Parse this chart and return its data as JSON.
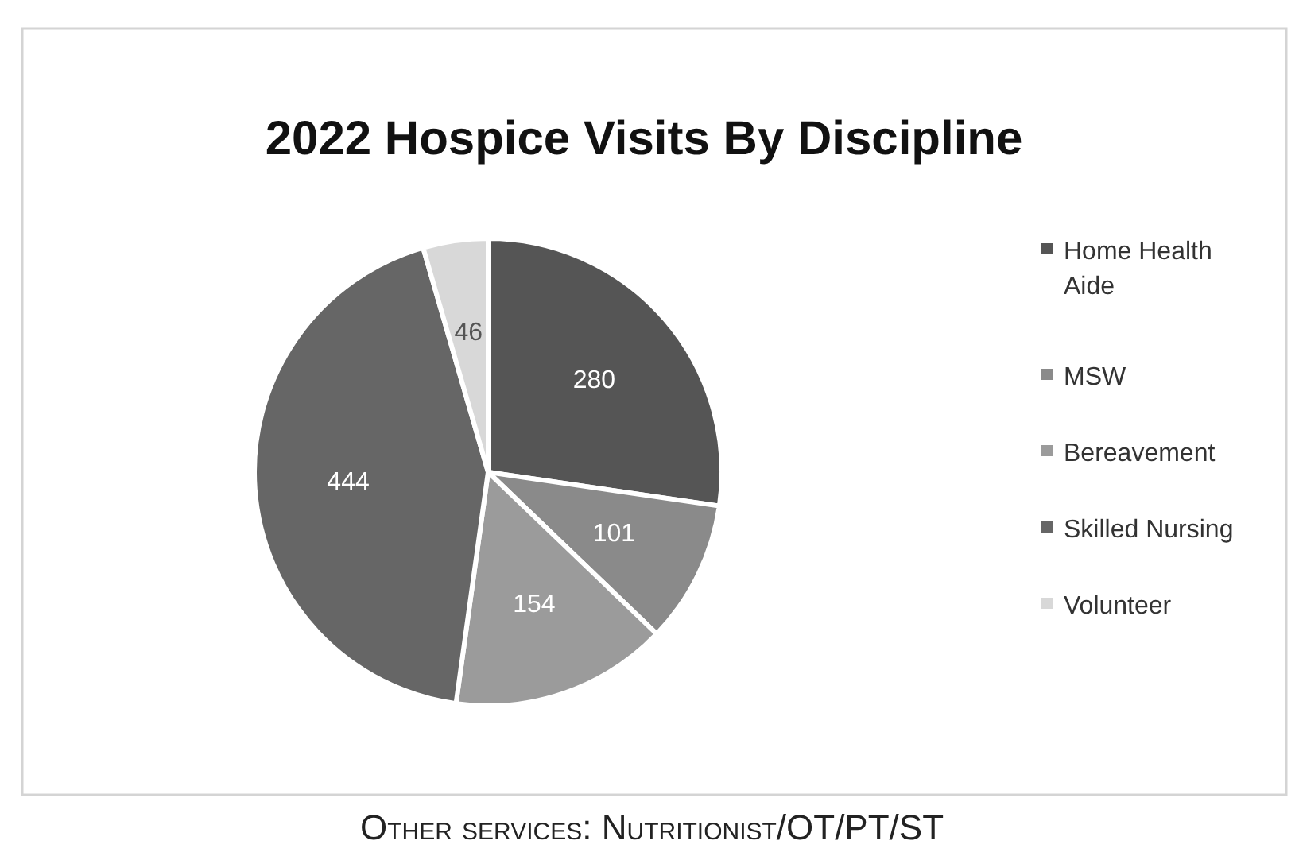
{
  "chart_data": {
    "type": "pie",
    "title": "2022 Hospice Visits By Discipline",
    "categories": [
      "Home Health Aide",
      "MSW",
      "Bereavement",
      "Skilled Nursing",
      "Volunteer"
    ],
    "values": [
      280,
      101,
      154,
      444,
      46
    ],
    "colors": [
      "#555555",
      "#8a8a8a",
      "#9b9b9b",
      "#666666",
      "#d8d8d8"
    ],
    "data_labels": true,
    "legend": "right",
    "annotations": [
      "Other services: Nutritionist/OT/PT/ST"
    ]
  }
}
